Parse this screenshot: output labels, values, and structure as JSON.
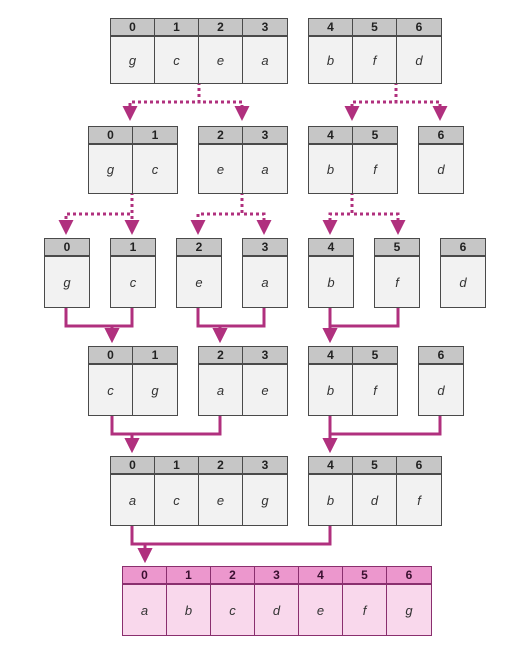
{
  "colors": {
    "arrow": "#b0307e",
    "cell_border": "#4a4a4a",
    "index_fill": "#c6c6c6",
    "value_fill": "#f2f2f2",
    "final_index_fill": "#ec97cd",
    "final_value_fill": "#f9d8ec"
  },
  "rows": [
    {
      "stage": "split-level-0",
      "blocks": [
        {
          "cells": [
            {
              "i": "0",
              "v": "g"
            },
            {
              "i": "1",
              "v": "c"
            },
            {
              "i": "2",
              "v": "e"
            },
            {
              "i": "3",
              "v": "a"
            }
          ]
        },
        {
          "cells": [
            {
              "i": "4",
              "v": "b"
            },
            {
              "i": "5",
              "v": "f"
            },
            {
              "i": "6",
              "v": "d"
            }
          ]
        }
      ]
    },
    {
      "stage": "split-level-1",
      "blocks": [
        {
          "cells": [
            {
              "i": "0",
              "v": "g"
            },
            {
              "i": "1",
              "v": "c"
            }
          ]
        },
        {
          "cells": [
            {
              "i": "2",
              "v": "e"
            },
            {
              "i": "3",
              "v": "a"
            }
          ]
        },
        {
          "cells": [
            {
              "i": "4",
              "v": "b"
            },
            {
              "i": "5",
              "v": "f"
            }
          ]
        },
        {
          "cells": [
            {
              "i": "6",
              "v": "d"
            }
          ]
        }
      ]
    },
    {
      "stage": "split-level-2",
      "blocks": [
        {
          "cells": [
            {
              "i": "0",
              "v": "g"
            }
          ]
        },
        {
          "cells": [
            {
              "i": "1",
              "v": "c"
            }
          ]
        },
        {
          "cells": [
            {
              "i": "2",
              "v": "e"
            }
          ]
        },
        {
          "cells": [
            {
              "i": "3",
              "v": "a"
            }
          ]
        },
        {
          "cells": [
            {
              "i": "4",
              "v": "b"
            }
          ]
        },
        {
          "cells": [
            {
              "i": "5",
              "v": "f"
            }
          ]
        },
        {
          "cells": [
            {
              "i": "6",
              "v": "d"
            }
          ]
        }
      ]
    },
    {
      "stage": "merge-level-1",
      "blocks": [
        {
          "cells": [
            {
              "i": "0",
              "v": "c"
            },
            {
              "i": "1",
              "v": "g"
            }
          ]
        },
        {
          "cells": [
            {
              "i": "2",
              "v": "a"
            },
            {
              "i": "3",
              "v": "e"
            }
          ]
        },
        {
          "cells": [
            {
              "i": "4",
              "v": "b"
            },
            {
              "i": "5",
              "v": "f"
            }
          ]
        },
        {
          "cells": [
            {
              "i": "6",
              "v": "d"
            }
          ]
        }
      ]
    },
    {
      "stage": "merge-level-2",
      "blocks": [
        {
          "cells": [
            {
              "i": "0",
              "v": "a"
            },
            {
              "i": "1",
              "v": "c"
            },
            {
              "i": "2",
              "v": "e"
            },
            {
              "i": "3",
              "v": "g"
            }
          ]
        },
        {
          "cells": [
            {
              "i": "4",
              "v": "b"
            },
            {
              "i": "5",
              "v": "d"
            },
            {
              "i": "6",
              "v": "f"
            }
          ]
        }
      ]
    },
    {
      "stage": "sorted-result",
      "final": true,
      "blocks": [
        {
          "cells": [
            {
              "i": "0",
              "v": "a"
            },
            {
              "i": "1",
              "v": "b"
            },
            {
              "i": "2",
              "v": "c"
            },
            {
              "i": "3",
              "v": "d"
            },
            {
              "i": "4",
              "v": "e"
            },
            {
              "i": "5",
              "v": "f"
            },
            {
              "i": "6",
              "v": "g"
            }
          ]
        }
      ]
    }
  ]
}
